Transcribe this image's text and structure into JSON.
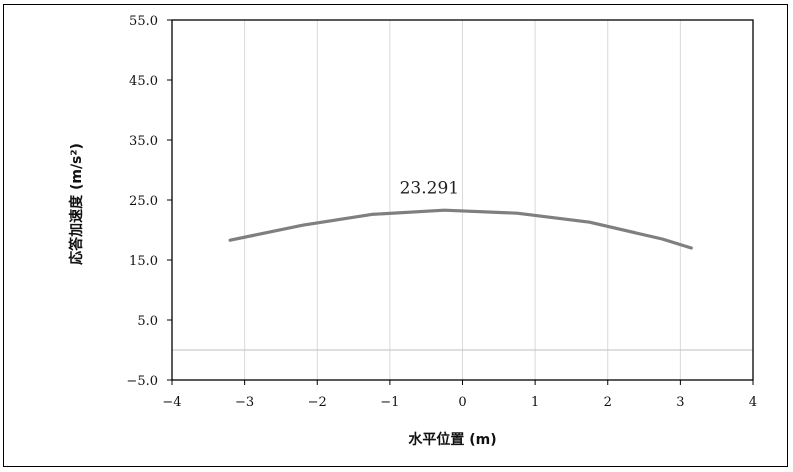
{
  "chart_data": {
    "type": "line",
    "title": "",
    "xlabel": "水平位置 (m)",
    "ylabel": "応答加速度 (m/s²)",
    "xlim": [
      -4,
      4
    ],
    "ylim": [
      -5,
      55
    ],
    "x_ticks": [
      -4,
      -3,
      -2,
      -1,
      0,
      1,
      2,
      3,
      4
    ],
    "y_ticks": [
      -5,
      5,
      15,
      25,
      35,
      45,
      55
    ],
    "x_tick_labels": [
      "−4",
      "−3",
      "−2",
      "−1",
      "0",
      "1",
      "2",
      "3",
      "4"
    ],
    "y_tick_labels": [
      "−5.0",
      "5.0",
      "15.0",
      "25.0",
      "35.0",
      "45.0",
      "55.0"
    ],
    "grid": {
      "vertical": true,
      "horizontal": false,
      "zero_line": true
    },
    "series": [
      {
        "x": [
          -3.2,
          -2.2,
          -1.25,
          -0.25,
          0.75,
          1.75,
          2.75,
          3.15
        ],
        "y": [
          18.3,
          20.8,
          22.6,
          23.3,
          22.8,
          21.3,
          18.5,
          17.0
        ],
        "color": "#7f7f7f"
      }
    ],
    "annotations": [
      {
        "text": "23.291",
        "x": -0.25,
        "y": 23.291
      }
    ]
  }
}
